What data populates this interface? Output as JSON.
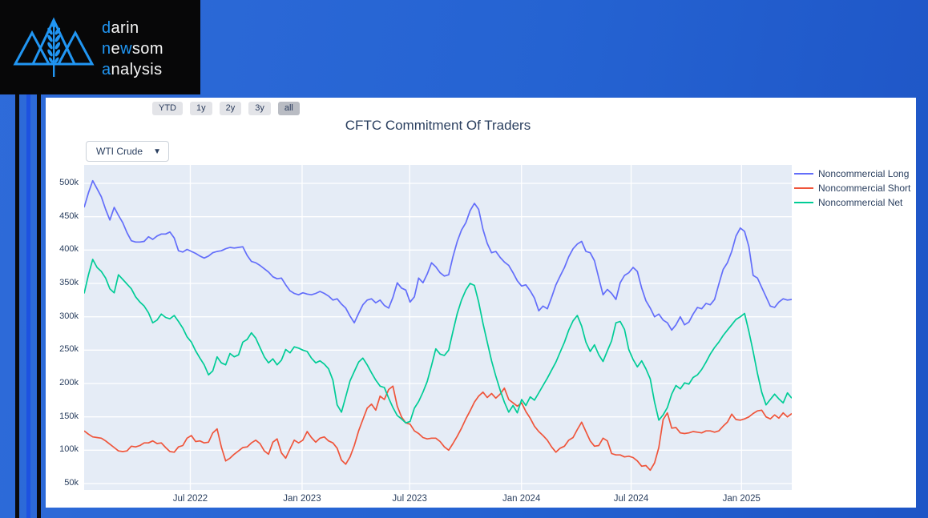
{
  "page": {
    "background_from": "#2e6bd9",
    "background_to": "#1e55c6",
    "card_color": "#ffffff",
    "stripe_black": "#0a0a0c",
    "stripe_blue": "#1d52e0"
  },
  "logo": {
    "bg": "#070708",
    "accent": "#2196f3",
    "text_color": "#f7f7f7",
    "lines": [
      [
        {
          "t": "d",
          "a": 1
        },
        {
          "t": "arin",
          "a": 0
        }
      ],
      [
        {
          "t": "n",
          "a": 1
        },
        {
          "t": "e",
          "a": 0
        },
        {
          "t": "w",
          "a": 1
        },
        {
          "t": "som",
          "a": 0
        }
      ],
      [
        {
          "t": "a",
          "a": 1
        },
        {
          "t": "nalysis",
          "a": 0
        }
      ]
    ]
  },
  "toolbar": {
    "range_buttons": [
      "YTD",
      "1y",
      "2y",
      "3y",
      "all"
    ],
    "active_button": "all"
  },
  "controls": {
    "symbol_dropdown": {
      "value": "WTI Crude",
      "caret": "▼"
    }
  },
  "chart_data": {
    "type": "line",
    "title": "CFTC Commitment Of Traders",
    "x_range": [
      "Jan 2022",
      "Mar 2025"
    ],
    "x_frequency": "weekly",
    "y_unit": "contracts (k = thousands)",
    "ylim_k": [
      40,
      527
    ],
    "plot_bg": "#e5ecf6",
    "grid_color": "#ffffff",
    "legend_position": "right",
    "x_ticks": [
      {
        "label": "Jul 2022",
        "pos": 0.15
      },
      {
        "label": "Jan 2023",
        "pos": 0.308
      },
      {
        "label": "Jul 2023",
        "pos": 0.46
      },
      {
        "label": "Jan 2024",
        "pos": 0.618
      },
      {
        "label": "Jul 2024",
        "pos": 0.773
      },
      {
        "label": "Jan 2025",
        "pos": 0.929
      }
    ],
    "y_ticks": [
      {
        "label": "500k",
        "value": 500
      },
      {
        "label": "450k",
        "value": 450
      },
      {
        "label": "400k",
        "value": 400
      },
      {
        "label": "350k",
        "value": 350
      },
      {
        "label": "300k",
        "value": 300
      },
      {
        "label": "250k",
        "value": 250
      },
      {
        "label": "200k",
        "value": 200
      },
      {
        "label": "150k",
        "value": 150
      },
      {
        "label": "100k",
        "value": 100
      },
      {
        "label": "50k",
        "value": 50
      }
    ],
    "series": [
      {
        "name": "Noncommercial Long",
        "color": "#636efa",
        "values_k": [
          464,
          486,
          504,
          492,
          480,
          461,
          445,
          464,
          452,
          441,
          426,
          414,
          412,
          412,
          413,
          420,
          416,
          421,
          424,
          424,
          427,
          418,
          399,
          397,
          401,
          398,
          395,
          391,
          388,
          391,
          396,
          398,
          399,
          402,
          404,
          403,
          404,
          405,
          392,
          383,
          381,
          377,
          372,
          367,
          360,
          357,
          358,
          348,
          339,
          335,
          333,
          336,
          334,
          333,
          335,
          338,
          335,
          331,
          325,
          327,
          319,
          313,
          301,
          291,
          305,
          318,
          325,
          327,
          321,
          325,
          317,
          313,
          329,
          351,
          343,
          340,
          322,
          330,
          358,
          351,
          364,
          381,
          375,
          366,
          361,
          363,
          390,
          413,
          430,
          441,
          459,
          470,
          461,
          431,
          410,
          396,
          398,
          389,
          382,
          377,
          366,
          354,
          346,
          348,
          339,
          328,
          309,
          316,
          312,
          329,
          348,
          361,
          374,
          390,
          402,
          409,
          413,
          398,
          396,
          384,
          358,
          333,
          341,
          335,
          326,
          351,
          362,
          366,
          374,
          368,
          343,
          324,
          313,
          300,
          304,
          295,
          291,
          280,
          288,
          300,
          288,
          292,
          304,
          314,
          312,
          320,
          318,
          326,
          349,
          371,
          381,
          398,
          421,
          433,
          428,
          405,
          362,
          358,
          344,
          330,
          316,
          314,
          322,
          327,
          325,
          326
        ]
      },
      {
        "name": "Noncommercial Short",
        "color": "#ef553b",
        "values_k": [
          129,
          124,
          120,
          119,
          118,
          114,
          109,
          104,
          99,
          98,
          99,
          106,
          105,
          107,
          111,
          111,
          114,
          110,
          111,
          104,
          98,
          97,
          105,
          107,
          118,
          122,
          113,
          114,
          111,
          112,
          126,
          132,
          105,
          84,
          88,
          94,
          99,
          104,
          105,
          111,
          115,
          110,
          99,
          94,
          112,
          117,
          96,
          88,
          102,
          115,
          111,
          115,
          128,
          119,
          112,
          118,
          120,
          114,
          111,
          103,
          85,
          79,
          90,
          107,
          129,
          146,
          163,
          169,
          160,
          181,
          176,
          191,
          196,
          166,
          150,
          141,
          139,
          129,
          125,
          119,
          117,
          118,
          118,
          113,
          105,
          100,
          110,
          121,
          133,
          147,
          159,
          172,
          181,
          187,
          179,
          185,
          178,
          184,
          193,
          176,
          171,
          166,
          171,
          158,
          148,
          136,
          128,
          122,
          115,
          105,
          97,
          103,
          106,
          115,
          119,
          131,
          142,
          128,
          114,
          106,
          107,
          118,
          114,
          95,
          93,
          93,
          90,
          91,
          89,
          84,
          76,
          77,
          70,
          81,
          104,
          146,
          156,
          133,
          134,
          126,
          125,
          126,
          128,
          127,
          126,
          129,
          129,
          127,
          129,
          136,
          142,
          154,
          146,
          145,
          147,
          150,
          155,
          159,
          160,
          150,
          147,
          153,
          148,
          156,
          150,
          155
        ]
      },
      {
        "name": "Noncommercial Net",
        "color": "#00cc96",
        "values_k": [
          335,
          363,
          386,
          374,
          368,
          358,
          342,
          336,
          363,
          356,
          349,
          342,
          330,
          322,
          316,
          306,
          291,
          295,
          304,
          299,
          297,
          302,
          293,
          283,
          270,
          262,
          249,
          238,
          228,
          213,
          219,
          240,
          231,
          228,
          245,
          240,
          243,
          262,
          266,
          276,
          268,
          254,
          240,
          231,
          237,
          228,
          235,
          251,
          246,
          255,
          253,
          250,
          248,
          238,
          231,
          234,
          229,
          222,
          205,
          168,
          157,
          180,
          204,
          218,
          232,
          238,
          228,
          216,
          205,
          196,
          194,
          178,
          164,
          152,
          147,
          141,
          143,
          163,
          173,
          187,
          203,
          227,
          252,
          244,
          242,
          250,
          278,
          305,
          325,
          340,
          350,
          347,
          322,
          290,
          262,
          234,
          211,
          190,
          172,
          157,
          167,
          156,
          176,
          167,
          180,
          175,
          186,
          197,
          208,
          220,
          232,
          247,
          262,
          280,
          294,
          302,
          286,
          262,
          248,
          258,
          243,
          233,
          249,
          264,
          291,
          293,
          281,
          251,
          236,
          225,
          234,
          222,
          207,
          172,
          145,
          153,
          164,
          184,
          197,
          192,
          201,
          199,
          209,
          213,
          221,
          232,
          244,
          254,
          262,
          272,
          280,
          288,
          296,
          300,
          305,
          278,
          248,
          215,
          187,
          168,
          176,
          184,
          177,
          171,
          186,
          178
        ]
      }
    ]
  }
}
